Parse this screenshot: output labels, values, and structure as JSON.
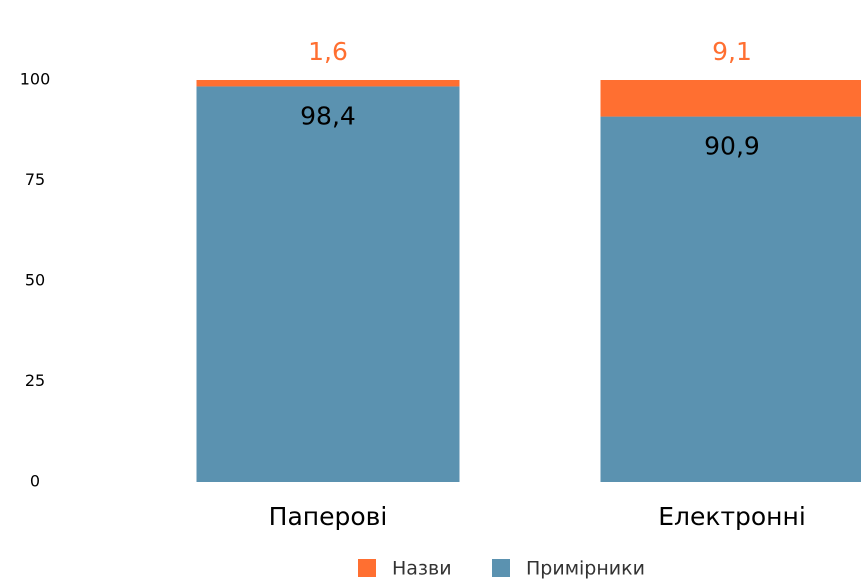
{
  "chart_data": {
    "type": "stacked_bar",
    "categories": [
      "Паперові",
      "Електронні"
    ],
    "series": [
      {
        "name": "Назви",
        "color": "#ff6f31",
        "values": [
          1.6,
          9.1
        ],
        "value_labels": [
          "1,6",
          "9,1"
        ]
      },
      {
        "name": "Примірники",
        "color": "#5b92b0",
        "values": [
          98.4,
          90.9
        ],
        "value_labels": [
          "98,4",
          "90,9"
        ]
      }
    ],
    "ylim": [
      0,
      100
    ],
    "yticks": [
      0,
      25,
      50,
      75,
      100
    ],
    "grid": false
  }
}
